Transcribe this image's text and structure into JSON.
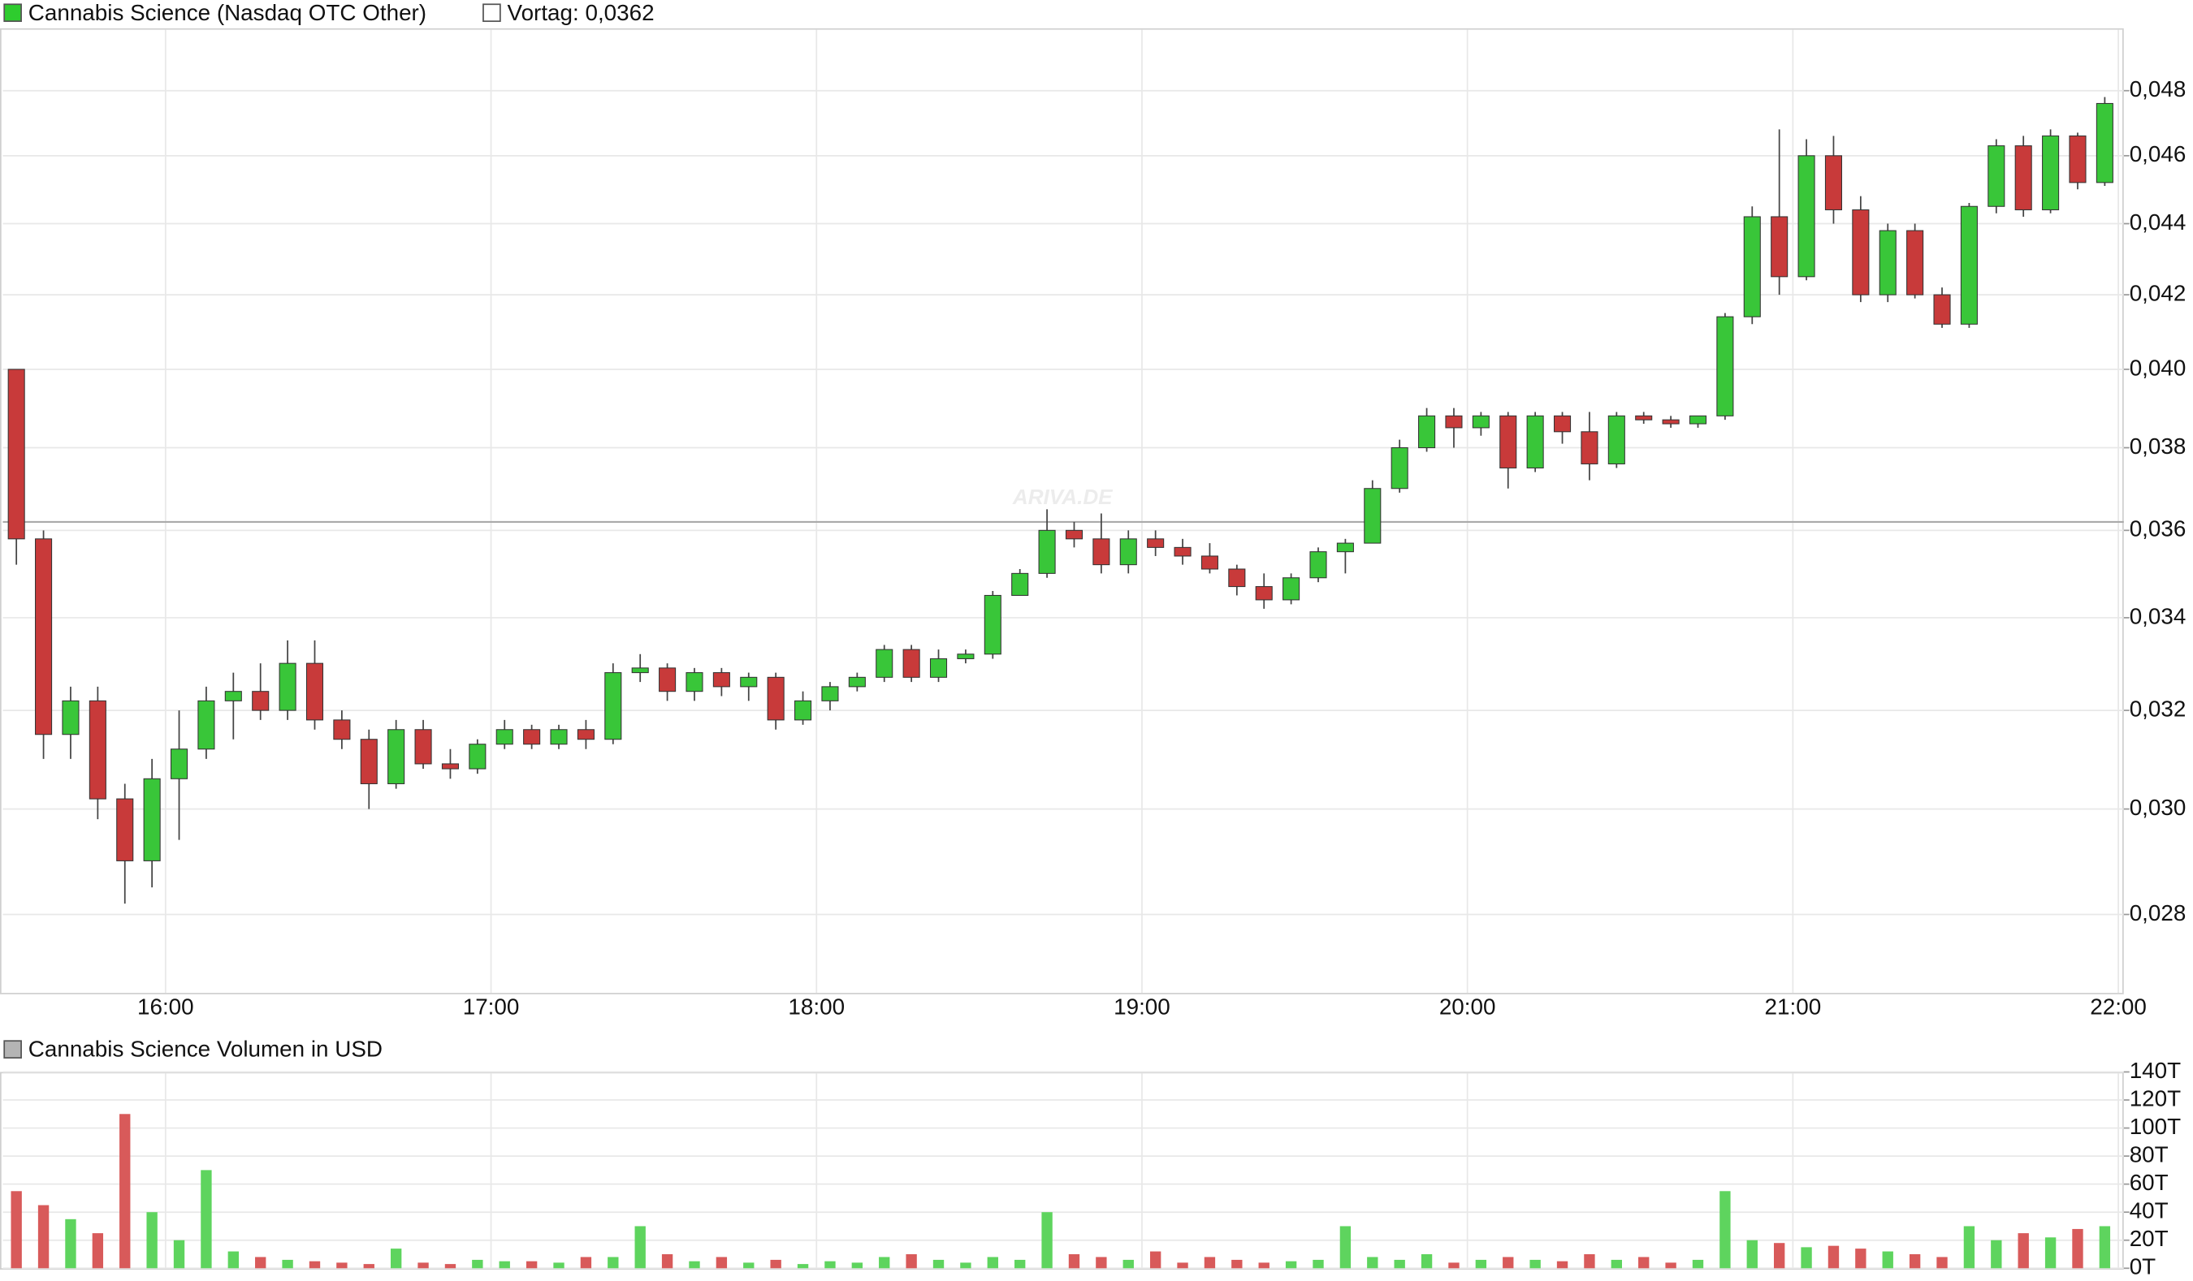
{
  "chart_data": [
    {
      "type": "candlestick",
      "title": "Cannabis Science (Nasdaq OTC Other)",
      "legend_color": "#2ecc2e",
      "previous_close": {
        "value": 0.0362,
        "label": "Vortag: 0,0362"
      },
      "watermark": "ARIVA.DE",
      "up_color": "#39c639",
      "down_color": "#c83a3a",
      "log_scale": true,
      "grid": true,
      "x": [
        "15:30",
        "15:35",
        "15:40",
        "15:45",
        "15:50",
        "15:55",
        "16:00",
        "16:05",
        "16:10",
        "16:15",
        "16:20",
        "16:25",
        "16:30",
        "16:35",
        "16:40",
        "16:45",
        "16:50",
        "16:55",
        "17:00",
        "17:05",
        "17:10",
        "17:15",
        "17:20",
        "17:25",
        "17:30",
        "17:35",
        "17:40",
        "17:45",
        "17:50",
        "17:55",
        "18:00",
        "18:05",
        "18:10",
        "18:15",
        "18:20",
        "18:25",
        "18:30",
        "18:35",
        "18:40",
        "18:45",
        "18:50",
        "18:55",
        "19:00",
        "19:05",
        "19:10",
        "19:15",
        "19:20",
        "19:25",
        "19:30",
        "19:35",
        "19:40",
        "19:45",
        "19:50",
        "19:55",
        "20:00",
        "20:05",
        "20:10",
        "20:15",
        "20:20",
        "20:25",
        "20:30",
        "20:35",
        "20:40",
        "20:45",
        "20:50",
        "20:55",
        "21:00",
        "21:05",
        "21:10",
        "21:15",
        "21:20",
        "21:25",
        "21:30",
        "21:35",
        "21:40",
        "21:45",
        "21:50",
        "21:55"
      ],
      "open": [
        0.04,
        0.0358,
        0.0315,
        0.0322,
        0.0302,
        0.029,
        0.0306,
        0.0312,
        0.0322,
        0.0324,
        0.032,
        0.033,
        0.0318,
        0.0314,
        0.0305,
        0.0316,
        0.0309,
        0.0308,
        0.0313,
        0.0316,
        0.0313,
        0.0316,
        0.0314,
        0.0328,
        0.0329,
        0.0324,
        0.0328,
        0.0325,
        0.0327,
        0.0318,
        0.0322,
        0.0325,
        0.0327,
        0.0333,
        0.0327,
        0.0331,
        0.0332,
        0.0345,
        0.035,
        0.036,
        0.0358,
        0.0352,
        0.0358,
        0.0356,
        0.0354,
        0.0351,
        0.0347,
        0.0344,
        0.0349,
        0.0355,
        0.0357,
        0.037,
        0.038,
        0.0388,
        0.0385,
        0.0388,
        0.0375,
        0.0388,
        0.0384,
        0.0376,
        0.0388,
        0.0387,
        0.0386,
        0.0388,
        0.0414,
        0.0442,
        0.0425,
        0.046,
        0.0444,
        0.042,
        0.0438,
        0.042,
        0.0412,
        0.0445,
        0.0463,
        0.0444,
        0.0466,
        0.0452
      ],
      "high": [
        0.04,
        0.036,
        0.0325,
        0.0325,
        0.0305,
        0.031,
        0.032,
        0.0325,
        0.0328,
        0.033,
        0.0335,
        0.0335,
        0.032,
        0.0316,
        0.0318,
        0.0318,
        0.0312,
        0.0314,
        0.0318,
        0.0317,
        0.0317,
        0.0318,
        0.033,
        0.0332,
        0.033,
        0.0329,
        0.0329,
        0.0328,
        0.0328,
        0.0324,
        0.0326,
        0.0328,
        0.0334,
        0.0334,
        0.0333,
        0.0333,
        0.0346,
        0.0351,
        0.0365,
        0.0362,
        0.0364,
        0.036,
        0.036,
        0.0358,
        0.0357,
        0.0352,
        0.035,
        0.035,
        0.0356,
        0.0358,
        0.0372,
        0.0382,
        0.039,
        0.039,
        0.0389,
        0.0389,
        0.0389,
        0.0389,
        0.0389,
        0.0389,
        0.0389,
        0.0388,
        0.0388,
        0.0415,
        0.0445,
        0.0468,
        0.0465,
        0.0466,
        0.0448,
        0.044,
        0.044,
        0.0422,
        0.0446,
        0.0465,
        0.0466,
        0.0468,
        0.0467,
        0.0478
      ],
      "low": [
        0.0352,
        0.031,
        0.031,
        0.0298,
        0.0282,
        0.0285,
        0.0294,
        0.031,
        0.0314,
        0.0318,
        0.0318,
        0.0316,
        0.0312,
        0.03,
        0.0304,
        0.0308,
        0.0306,
        0.0307,
        0.0312,
        0.0312,
        0.0312,
        0.0312,
        0.0313,
        0.0326,
        0.0322,
        0.0322,
        0.0323,
        0.0322,
        0.0316,
        0.0317,
        0.032,
        0.0324,
        0.0326,
        0.0326,
        0.0326,
        0.033,
        0.0331,
        0.0345,
        0.0349,
        0.0356,
        0.035,
        0.035,
        0.0354,
        0.0352,
        0.035,
        0.0345,
        0.0342,
        0.0343,
        0.0348,
        0.035,
        0.0357,
        0.0369,
        0.0379,
        0.038,
        0.0383,
        0.037,
        0.0374,
        0.0381,
        0.0372,
        0.0375,
        0.0386,
        0.0385,
        0.0385,
        0.0387,
        0.0412,
        0.042,
        0.0424,
        0.044,
        0.0418,
        0.0418,
        0.0419,
        0.0411,
        0.0411,
        0.0443,
        0.0442,
        0.0443,
        0.045,
        0.0451
      ],
      "close": [
        0.0358,
        0.0315,
        0.0322,
        0.0302,
        0.029,
        0.0306,
        0.0312,
        0.0322,
        0.0324,
        0.032,
        0.033,
        0.0318,
        0.0314,
        0.0305,
        0.0316,
        0.0309,
        0.0308,
        0.0313,
        0.0316,
        0.0313,
        0.0316,
        0.0314,
        0.0328,
        0.0329,
        0.0324,
        0.0328,
        0.0325,
        0.0327,
        0.0318,
        0.0322,
        0.0325,
        0.0327,
        0.0333,
        0.0327,
        0.0331,
        0.0332,
        0.0345,
        0.035,
        0.036,
        0.0358,
        0.0352,
        0.0358,
        0.0356,
        0.0354,
        0.0351,
        0.0347,
        0.0344,
        0.0349,
        0.0355,
        0.0357,
        0.037,
        0.038,
        0.0388,
        0.0385,
        0.0388,
        0.0375,
        0.0388,
        0.0384,
        0.0376,
        0.0388,
        0.0387,
        0.0386,
        0.0388,
        0.0414,
        0.0442,
        0.0425,
        0.046,
        0.0444,
        0.042,
        0.0438,
        0.042,
        0.0412,
        0.0445,
        0.0463,
        0.0444,
        0.0466,
        0.0452,
        0.0476
      ],
      "xlim": [
        "15:30",
        "22:01"
      ],
      "xticks": [
        "16:00",
        "17:00",
        "18:00",
        "19:00",
        "20:00",
        "21:00",
        "22:00"
      ],
      "ylim": [
        0.0266,
        0.05
      ],
      "yticks": [
        {
          "value": 0.028,
          "label": "0,028"
        },
        {
          "value": 0.03,
          "label": "0,030"
        },
        {
          "value": 0.032,
          "label": "0,032"
        },
        {
          "value": 0.034,
          "label": "0,034"
        },
        {
          "value": 0.036,
          "label": "0,036"
        },
        {
          "value": 0.038,
          "label": "0,038"
        },
        {
          "value": 0.04,
          "label": "0,040"
        },
        {
          "value": 0.042,
          "label": "0,042"
        },
        {
          "value": 0.044,
          "label": "0,044"
        },
        {
          "value": 0.046,
          "label": "0,046"
        },
        {
          "value": 0.048,
          "label": "0,048"
        }
      ]
    },
    {
      "type": "bar",
      "title": "Cannabis Science Volumen in USD",
      "legend_color": "#b4b4b4",
      "up_color": "#5ed45e",
      "down_color": "#d85a5a",
      "grid": true,
      "values": [
        55,
        45,
        35,
        25,
        110,
        40,
        20,
        70,
        12,
        8,
        6,
        5,
        4,
        3,
        14,
        4,
        3,
        6,
        5,
        5,
        4,
        8,
        8,
        30,
        10,
        5,
        8,
        4,
        6,
        3,
        5,
        4,
        8,
        10,
        6,
        4,
        8,
        6,
        40,
        10,
        8,
        6,
        12,
        4,
        8,
        6,
        4,
        5,
        6,
        30,
        8,
        6,
        10,
        4,
        6,
        8,
        6,
        5,
        10,
        6,
        8,
        4,
        6,
        55,
        20,
        18,
        15,
        16,
        14,
        12,
        10,
        8,
        30,
        20,
        25,
        22,
        28,
        30
      ],
      "ylim": [
        0,
        140
      ],
      "yticks": [
        {
          "value": 0,
          "label": "0T"
        },
        {
          "value": 20,
          "label": "20T"
        },
        {
          "value": 40,
          "label": "40T"
        },
        {
          "value": 60,
          "label": "60T"
        },
        {
          "value": 80,
          "label": "80T"
        },
        {
          "value": 100,
          "label": "100T"
        },
        {
          "value": 120,
          "label": "120T"
        },
        {
          "value": 140,
          "label": "140T"
        }
      ]
    }
  ]
}
